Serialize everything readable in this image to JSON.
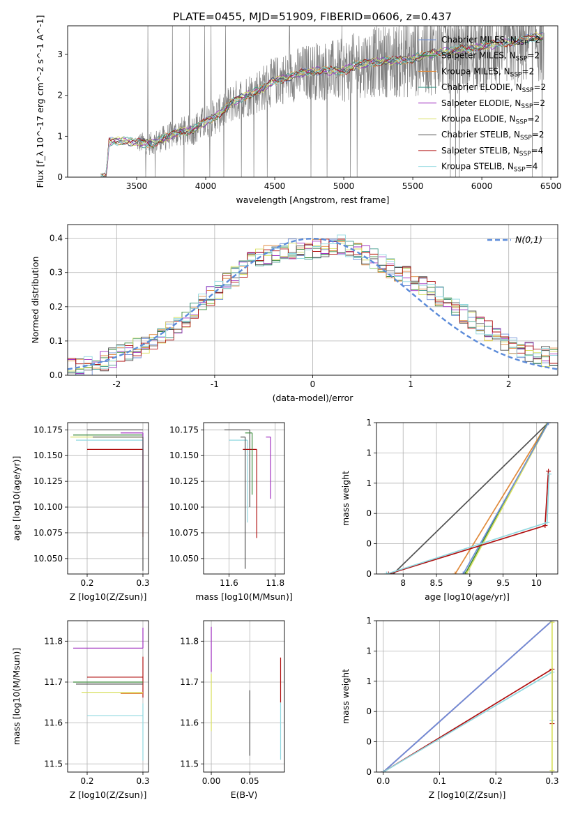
{
  "figure": {
    "title": "PLATE=0455, MJD=51909, FIBERID=0606, z=0.437"
  },
  "legend_models": [
    {
      "name": "Chabrier MILES",
      "color": "#6f8fd6"
    },
    {
      "name": "Salpeter MILES",
      "color": "#3a8a3a"
    },
    {
      "name": "Kroupa MILES",
      "color": "#e08a3c"
    },
    {
      "name": "Chabrier ELODIE",
      "color": "#3d9a8a"
    },
    {
      "name": "Salpeter ELODIE",
      "color": "#a030c0"
    },
    {
      "name": "Kroupa ELODIE",
      "color": "#d8e060"
    },
    {
      "name": "Chabrier STELIB",
      "color": "#505050"
    },
    {
      "name": "Salpeter STELIB",
      "color": "#b01010"
    },
    {
      "name": "Kroupa STELIB",
      "color": "#90d8e0"
    }
  ],
  "legend_nssp": [
    2,
    2,
    2,
    2,
    2,
    2,
    2,
    4,
    4
  ],
  "chart_data": [
    {
      "id": "spectrum",
      "type": "line",
      "xlabel": "wavelength [Angstrom, rest frame]",
      "ylabel": "Flux [f_λ 10^-17 erg cm^-2 s^-1 A^-1]",
      "xlim": [
        3000,
        6550
      ],
      "ylim": [
        0,
        3.7
      ],
      "xticks": [
        3500,
        4000,
        4500,
        5000,
        5500,
        6000,
        6500
      ],
      "yticks": [
        0,
        1,
        2,
        3
      ],
      "legend_position": "upper right",
      "grid": false,
      "continuum": {
        "x": [
          3240,
          3280,
          3300,
          3400,
          3500,
          3600,
          3700,
          3800,
          3900,
          4000,
          4100,
          4200,
          4300,
          4400,
          4500,
          4600,
          4700,
          4800,
          4900,
          5000,
          5100,
          5200,
          5300,
          5400,
          5500,
          5600,
          5700,
          5800,
          5900,
          6000,
          6100,
          6200,
          6300,
          6400
        ],
        "y": [
          0,
          0,
          0.85,
          0.9,
          0.85,
          0.82,
          0.95,
          1.1,
          1.15,
          1.35,
          1.55,
          1.85,
          2.0,
          2.15,
          2.35,
          2.45,
          2.55,
          2.6,
          2.6,
          2.6,
          2.75,
          2.8,
          2.85,
          2.85,
          2.9,
          3.0,
          3.05,
          3.1,
          3.15,
          3.2,
          3.25,
          3.3,
          3.35,
          3.45
        ]
      }
    },
    {
      "id": "residuals",
      "type": "histogram",
      "xlabel": "(data-model)/error",
      "ylabel": "Normed distribution",
      "xlim": [
        -2.5,
        2.5
      ],
      "ylim": [
        0,
        0.44
      ],
      "xticks": [
        -2,
        -1,
        0,
        1,
        2
      ],
      "yticks": [
        0.0,
        0.1,
        0.2,
        0.3,
        0.4
      ],
      "grid": true,
      "reference_curve": {
        "name": "N(0,1)",
        "mean": 0,
        "sigma": 1,
        "color": "#5b8bd9"
      },
      "bin_edges_start": -2.5,
      "bin_width": 0.1,
      "envelope": [
        0.02,
        0.02,
        0.025,
        0.03,
        0.04,
        0.05,
        0.06,
        0.07,
        0.08,
        0.09,
        0.1,
        0.115,
        0.13,
        0.15,
        0.17,
        0.19,
        0.21,
        0.23,
        0.25,
        0.27,
        0.29,
        0.31,
        0.33,
        0.34,
        0.35,
        0.36,
        0.37,
        0.37,
        0.36,
        0.36,
        0.37,
        0.37,
        0.38,
        0.38,
        0.37,
        0.36,
        0.35,
        0.34,
        0.33,
        0.31,
        0.3,
        0.29,
        0.27,
        0.26,
        0.25,
        0.23,
        0.22,
        0.2,
        0.18,
        0.16,
        0.15,
        0.13,
        0.12,
        0.1,
        0.09,
        0.08,
        0.07,
        0.06,
        0.055,
        0.05
      ]
    },
    {
      "id": "age-vs-Z",
      "type": "errorbar",
      "xlabel": "Z [log10(Z/Zsun)]",
      "ylabel": "age [log10(age/yr)]",
      "xlim": [
        0.165,
        0.31
      ],
      "ylim": [
        10.035,
        10.182
      ],
      "xticks": [
        0.2,
        0.3
      ],
      "yticks": [
        10.05,
        10.075,
        10.1,
        10.125,
        10.15,
        10.175
      ],
      "grid": true,
      "points": [
        {
          "x": 0.3,
          "y": 10.175,
          "xerr": [
            0.1,
            0.0
          ],
          "yerr": [
            0.0,
            0.0
          ],
          "model": 6
        },
        {
          "x": 0.3,
          "y": 10.17,
          "xerr": [
            0.125,
            0.0
          ],
          "yerr": [
            0.0,
            0.0
          ],
          "model": 1
        },
        {
          "x": 0.3,
          "y": 10.168,
          "xerr": [
            0.13,
            0.0
          ],
          "yerr": [
            0.0,
            0.0
          ],
          "model": 5
        },
        {
          "x": 0.3,
          "y": 10.165,
          "xerr": [
            0.12,
            0.0
          ],
          "yerr": [
            0.06,
            0.0
          ],
          "model": 8
        },
        {
          "x": 0.3,
          "y": 10.156,
          "xerr": [
            0.1,
            0.0
          ],
          "yerr": [
            0.085,
            0.0
          ],
          "model": 7
        },
        {
          "x": 0.3,
          "y": 10.172,
          "xerr": [
            0.04,
            0.0
          ],
          "yerr": [
            0.072,
            0.0
          ],
          "model": 4
        },
        {
          "x": 0.3,
          "y": 10.168,
          "xerr": [
            0.09,
            0.0
          ],
          "yerr": [
            0.13,
            0.0
          ],
          "model": 6
        }
      ]
    },
    {
      "id": "age-vs-mass",
      "type": "errorbar",
      "xlabel": "mass [log10(M/Msun)]",
      "ylabel": "",
      "xlim": [
        11.49,
        11.84
      ],
      "ylim": [
        10.035,
        10.182
      ],
      "xticks": [
        11.6,
        11.8
      ],
      "yticks": [
        10.05,
        10.075,
        10.1,
        10.125,
        10.15,
        10.175
      ],
      "grid": true,
      "points": [
        {
          "x": 11.69,
          "y": 10.175,
          "xerr": [
            0.11,
            0.0
          ],
          "yerr": [
            0.075,
            0.0
          ],
          "model": 6
        },
        {
          "x": 11.68,
          "y": 10.165,
          "xerr": [
            0.08,
            0.0
          ],
          "yerr": [
            0.08,
            0.0
          ],
          "model": 8
        },
        {
          "x": 11.72,
          "y": 10.156,
          "xerr": [
            0.06,
            0.0
          ],
          "yerr": [
            0.086,
            0.0
          ],
          "model": 7
        },
        {
          "x": 11.78,
          "y": 10.168,
          "xerr": [
            0.02,
            0.0
          ],
          "yerr": [
            0.06,
            0.0
          ],
          "model": 4
        },
        {
          "x": 11.7,
          "y": 10.172,
          "xerr": [
            0.03,
            0.0
          ],
          "yerr": [
            0.06,
            0.0
          ],
          "model": 1
        },
        {
          "x": 11.67,
          "y": 10.168,
          "xerr": [
            0.02,
            0.0
          ],
          "yerr": [
            0.128,
            0.0
          ],
          "model": 6
        }
      ]
    },
    {
      "id": "weight-vs-age",
      "type": "line",
      "xlabel": "age [log10(age/yr)]",
      "ylabel": "mass weight",
      "xlim": [
        7.6,
        10.32
      ],
      "ylim": [
        0,
        1
      ],
      "xticks": [
        8.0,
        8.5,
        9.0,
        9.5,
        10.0
      ],
      "yticks": [
        0.0,
        0.2,
        0.4,
        0.6,
        0.8,
        1.0
      ],
      "grid": true,
      "series": [
        {
          "model": 6,
          "x": [
            7.85,
            10.18
          ],
          "y": [
            0.0,
            1.0
          ]
        },
        {
          "model": 2,
          "x": [
            8.78,
            10.17
          ],
          "y": [
            0.0,
            1.0
          ]
        },
        {
          "model": 1,
          "x": [
            8.93,
            10.17
          ],
          "y": [
            0.0,
            1.0
          ]
        },
        {
          "model": 5,
          "x": [
            8.95,
            10.18
          ],
          "y": [
            0.0,
            1.0
          ]
        },
        {
          "model": 0,
          "x": [
            8.9,
            10.18
          ],
          "y": [
            0.0,
            1.0
          ]
        },
        {
          "model": 7,
          "x": [
            7.78,
            10.13,
            10.18
          ],
          "y": [
            0.0,
            0.32,
            0.68
          ]
        },
        {
          "model": 8,
          "x": [
            7.75,
            10.16,
            10.19
          ],
          "y": [
            0.0,
            0.34,
            0.66
          ]
        }
      ]
    },
    {
      "id": "mass-vs-Z",
      "type": "errorbar",
      "xlabel": "Z [log10(Z/Zsun)]",
      "ylabel": "mass [log10(M/Msun)]",
      "xlim": [
        0.165,
        0.31
      ],
      "ylim": [
        11.48,
        11.85
      ],
      "xticks": [
        0.2,
        0.3
      ],
      "yticks": [
        11.5,
        11.6,
        11.7,
        11.8
      ],
      "grid": true,
      "points": [
        {
          "x": 0.3,
          "y": 11.783,
          "xerr": [
            0.125,
            0.0
          ],
          "yerr": [
            0.0,
            0.05
          ],
          "model": 4
        },
        {
          "x": 0.3,
          "y": 11.712,
          "xerr": [
            0.1,
            0.0
          ],
          "yerr": [
            0.05,
            0.05
          ],
          "model": 7
        },
        {
          "x": 0.3,
          "y": 11.7,
          "xerr": [
            0.125,
            0.0
          ],
          "yerr": [
            0.0,
            0.0
          ],
          "model": 1
        },
        {
          "x": 0.3,
          "y": 11.695,
          "xerr": [
            0.12,
            0.0
          ],
          "yerr": [
            0.0,
            0.0
          ],
          "model": 6
        },
        {
          "x": 0.3,
          "y": 11.675,
          "xerr": [
            0.11,
            0.0
          ],
          "yerr": [
            0.0,
            0.0
          ],
          "model": 5
        },
        {
          "x": 0.3,
          "y": 11.672,
          "xerr": [
            0.04,
            0.0
          ],
          "yerr": [
            0.0,
            0.0
          ],
          "model": 2
        },
        {
          "x": 0.3,
          "y": 11.618,
          "xerr": [
            0.1,
            0.0
          ],
          "yerr": [
            0.11,
            0.03
          ],
          "model": 8
        }
      ]
    },
    {
      "id": "mass-vs-EBV",
      "type": "errorbar",
      "xlabel": "E(B-V)",
      "ylabel": "",
      "xlim": [
        -0.01,
        0.095
      ],
      "ylim": [
        11.48,
        11.85
      ],
      "xticks": [
        0.0,
        0.05
      ],
      "yticks": [
        11.5,
        11.6,
        11.7,
        11.8
      ],
      "grid": true,
      "points": [
        {
          "x": 0.0,
          "y": 11.785,
          "xerr": [
            0.0,
            0.0
          ],
          "yerr": [
            0.06,
            0.05
          ],
          "model": 4
        },
        {
          "x": 0.0,
          "y": 11.66,
          "xerr": [
            0.0,
            0.0
          ],
          "yerr": [
            0.08,
            0.06
          ],
          "model": 5
        },
        {
          "x": 0.05,
          "y": 11.6,
          "xerr": [
            0.0,
            0.0
          ],
          "yerr": [
            0.08,
            0.08
          ],
          "model": 6
        },
        {
          "x": 0.09,
          "y": 11.71,
          "xerr": [
            0.0,
            0.0
          ],
          "yerr": [
            0.06,
            0.05
          ],
          "model": 7
        },
        {
          "x": 0.09,
          "y": 11.6,
          "xerr": [
            0.0,
            0.0
          ],
          "yerr": [
            0.09,
            0.05
          ],
          "model": 8
        }
      ]
    },
    {
      "id": "weight-vs-Z",
      "type": "line",
      "xlabel": "Z [log10(Z/Zsun)]",
      "ylabel": "mass weight",
      "xlim": [
        -0.012,
        0.31
      ],
      "ylim": [
        0,
        1
      ],
      "xticks": [
        0.0,
        0.1,
        0.2,
        0.3
      ],
      "yticks": [
        0.0,
        0.2,
        0.4,
        0.6,
        0.8,
        1.0
      ],
      "grid": true,
      "series": [
        {
          "model": 6,
          "x": [
            0.0,
            0.3
          ],
          "y": [
            0.0,
            1.0
          ]
        },
        {
          "model": 4,
          "x": [
            0.0,
            0.3
          ],
          "y": [
            0.0,
            1.0
          ]
        },
        {
          "model": 0,
          "x": [
            0.0,
            0.3
          ],
          "y": [
            0.0,
            1.0
          ]
        },
        {
          "model": 7,
          "x": [
            0.0,
            0.3,
            0.3
          ],
          "y": [
            0.0,
            0.68,
            0.32
          ]
        },
        {
          "model": 8,
          "x": [
            0.0,
            0.3,
            0.3
          ],
          "y": [
            0.0,
            0.66,
            0.34
          ]
        },
        {
          "model": 5,
          "x": [
            0.3,
            0.3
          ],
          "y": [
            0.01,
            0.99
          ]
        }
      ]
    }
  ]
}
